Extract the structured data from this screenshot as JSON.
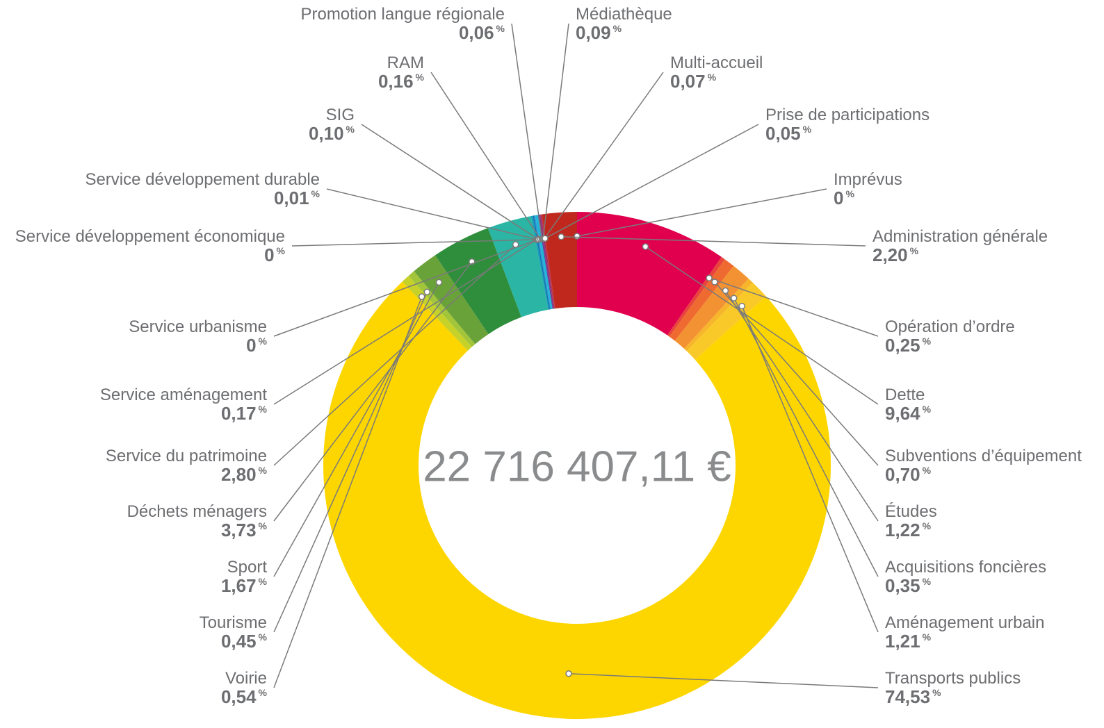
{
  "chart_data": {
    "type": "donut",
    "center_label": "22 716 407,11 €",
    "unit": "%",
    "categories": [
      "Imprévus",
      "Dette",
      "Opération d’ordre",
      "Subventions d’équipement",
      "Études",
      "Acquisitions foncières",
      "Aménagement urbain",
      "Transports publics",
      "Voirie",
      "Tourisme",
      "Sport",
      "Déchets ménagers",
      "Service du patrimoine",
      "Service aménagement",
      "Service urbanisme",
      "Service développement économique",
      "Service développement durable",
      "SIG",
      "RAM",
      "Promotion langue régionale",
      "Médiathèque",
      "Multi-accueil",
      "Prise de participations",
      "Administration générale"
    ],
    "values": [
      0,
      9.64,
      0.25,
      0.7,
      1.22,
      0.35,
      1.21,
      74.53,
      0.54,
      0.45,
      1.67,
      3.73,
      2.8,
      0.17,
      0,
      0,
      0.01,
      0.1,
      0.16,
      0.06,
      0.09,
      0.07,
      0.05,
      2.2
    ],
    "value_labels": [
      "0",
      "9,64",
      "0,25",
      "0,70",
      "1,22",
      "0,35",
      "1,21",
      "74,53",
      "0,54",
      "0,45",
      "1,67",
      "3,73",
      "2,80",
      "0,17",
      "0",
      "0",
      "0,01",
      "0,10",
      "0,16",
      "0,06",
      "0,09",
      "0,07",
      "0,05",
      "2,20"
    ],
    "colors": [
      "#222222",
      "#e0004d",
      "#e8433c",
      "#ef6a30",
      "#f39232",
      "#f7b52c",
      "#f9c92a",
      "#fdd600",
      "#c6d12a",
      "#a2c53a",
      "#6aa23a",
      "#2f8e3b",
      "#2bb5a4",
      "#1aa0b9",
      "#0f8fc0",
      "#1a6fb5",
      "#3b4fa0",
      "#2e9ad0",
      "#1db6d8",
      "#5a3a8e",
      "#8a2f7e",
      "#a02a60",
      "#c02a3a",
      "#c0281e"
    ]
  }
}
